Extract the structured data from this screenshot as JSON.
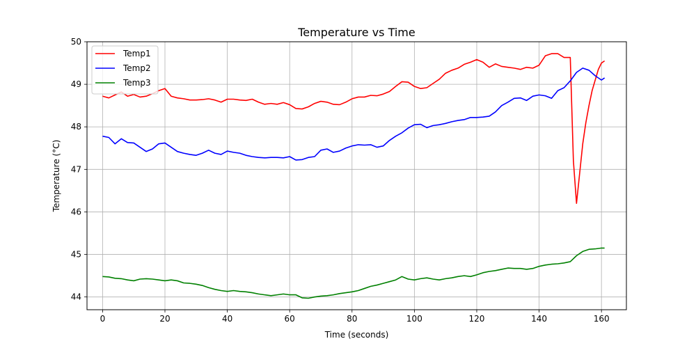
{
  "chart_data": {
    "type": "line",
    "title": "Temperature vs Time",
    "xlabel": "Time (seconds)",
    "ylabel": "Temperature (°C)",
    "xlim": [
      -5,
      168
    ],
    "ylim": [
      43.7,
      50
    ],
    "xticks": [
      0,
      20,
      40,
      60,
      80,
      100,
      120,
      140,
      160
    ],
    "yticks": [
      44,
      45,
      46,
      47,
      48,
      49,
      50
    ],
    "grid": true,
    "legend_position": "top-left",
    "series": [
      {
        "name": "Temp1",
        "color": "#ff0000",
        "points": [
          [
            0,
            48.72
          ],
          [
            2,
            48.68
          ],
          [
            4,
            48.75
          ],
          [
            6,
            48.82
          ],
          [
            8,
            48.72
          ],
          [
            10,
            48.76
          ],
          [
            12,
            48.7
          ],
          [
            14,
            48.72
          ],
          [
            16,
            48.78
          ],
          [
            18,
            48.85
          ],
          [
            20,
            48.9
          ],
          [
            22,
            48.72
          ],
          [
            24,
            48.68
          ],
          [
            26,
            48.66
          ],
          [
            28,
            48.63
          ],
          [
            30,
            48.63
          ],
          [
            32,
            48.64
          ],
          [
            34,
            48.66
          ],
          [
            36,
            48.63
          ],
          [
            38,
            48.58
          ],
          [
            40,
            48.65
          ],
          [
            42,
            48.65
          ],
          [
            44,
            48.63
          ],
          [
            46,
            48.62
          ],
          [
            48,
            48.65
          ],
          [
            50,
            48.58
          ],
          [
            52,
            48.53
          ],
          [
            54,
            48.55
          ],
          [
            56,
            48.53
          ],
          [
            58,
            48.57
          ],
          [
            60,
            48.52
          ],
          [
            62,
            48.43
          ],
          [
            64,
            48.42
          ],
          [
            66,
            48.47
          ],
          [
            68,
            48.55
          ],
          [
            70,
            48.6
          ],
          [
            72,
            48.58
          ],
          [
            74,
            48.53
          ],
          [
            76,
            48.52
          ],
          [
            78,
            48.58
          ],
          [
            80,
            48.66
          ],
          [
            82,
            48.7
          ],
          [
            84,
            48.7
          ],
          [
            86,
            48.74
          ],
          [
            88,
            48.73
          ],
          [
            90,
            48.77
          ],
          [
            92,
            48.83
          ],
          [
            94,
            48.95
          ],
          [
            96,
            49.06
          ],
          [
            98,
            49.05
          ],
          [
            100,
            48.95
          ],
          [
            102,
            48.9
          ],
          [
            104,
            48.92
          ],
          [
            106,
            49.02
          ],
          [
            108,
            49.12
          ],
          [
            110,
            49.26
          ],
          [
            112,
            49.33
          ],
          [
            114,
            49.38
          ],
          [
            116,
            49.47
          ],
          [
            118,
            49.52
          ],
          [
            120,
            49.58
          ],
          [
            122,
            49.52
          ],
          [
            124,
            49.4
          ],
          [
            126,
            49.48
          ],
          [
            128,
            49.42
          ],
          [
            130,
            49.4
          ],
          [
            132,
            49.38
          ],
          [
            134,
            49.35
          ],
          [
            136,
            49.4
          ],
          [
            138,
            49.38
          ],
          [
            140,
            49.45
          ],
          [
            142,
            49.67
          ],
          [
            144,
            49.72
          ],
          [
            146,
            49.72
          ],
          [
            148,
            49.63
          ],
          [
            150,
            49.63
          ],
          [
            151,
            47.2
          ],
          [
            152,
            46.2
          ],
          [
            153,
            46.9
          ],
          [
            154,
            47.6
          ],
          [
            155,
            48.1
          ],
          [
            156,
            48.5
          ],
          [
            157,
            48.85
          ],
          [
            158,
            49.1
          ],
          [
            159,
            49.35
          ],
          [
            160,
            49.5
          ],
          [
            161,
            49.55
          ]
        ]
      },
      {
        "name": "Temp2",
        "color": "#0000ff",
        "points": [
          [
            0,
            47.78
          ],
          [
            2,
            47.75
          ],
          [
            4,
            47.6
          ],
          [
            6,
            47.72
          ],
          [
            8,
            47.63
          ],
          [
            10,
            47.62
          ],
          [
            12,
            47.52
          ],
          [
            14,
            47.42
          ],
          [
            16,
            47.48
          ],
          [
            18,
            47.6
          ],
          [
            20,
            47.62
          ],
          [
            22,
            47.52
          ],
          [
            24,
            47.42
          ],
          [
            26,
            47.38
          ],
          [
            28,
            47.35
          ],
          [
            30,
            47.33
          ],
          [
            32,
            47.38
          ],
          [
            34,
            47.45
          ],
          [
            36,
            47.38
          ],
          [
            38,
            47.35
          ],
          [
            40,
            47.43
          ],
          [
            42,
            47.4
          ],
          [
            44,
            47.38
          ],
          [
            46,
            47.33
          ],
          [
            48,
            47.3
          ],
          [
            50,
            47.28
          ],
          [
            52,
            47.27
          ],
          [
            54,
            47.28
          ],
          [
            56,
            47.28
          ],
          [
            58,
            47.27
          ],
          [
            60,
            47.3
          ],
          [
            62,
            47.22
          ],
          [
            64,
            47.23
          ],
          [
            66,
            47.28
          ],
          [
            68,
            47.3
          ],
          [
            70,
            47.45
          ],
          [
            72,
            47.48
          ],
          [
            74,
            47.4
          ],
          [
            76,
            47.43
          ],
          [
            78,
            47.5
          ],
          [
            80,
            47.55
          ],
          [
            82,
            47.58
          ],
          [
            84,
            47.57
          ],
          [
            86,
            47.58
          ],
          [
            88,
            47.52
          ],
          [
            90,
            47.55
          ],
          [
            92,
            47.68
          ],
          [
            94,
            47.78
          ],
          [
            96,
            47.86
          ],
          [
            98,
            47.97
          ],
          [
            100,
            48.05
          ],
          [
            102,
            48.06
          ],
          [
            104,
            47.98
          ],
          [
            106,
            48.03
          ],
          [
            108,
            48.05
          ],
          [
            110,
            48.08
          ],
          [
            112,
            48.12
          ],
          [
            114,
            48.15
          ],
          [
            116,
            48.17
          ],
          [
            118,
            48.22
          ],
          [
            120,
            48.22
          ],
          [
            122,
            48.23
          ],
          [
            124,
            48.25
          ],
          [
            126,
            48.35
          ],
          [
            128,
            48.5
          ],
          [
            130,
            48.58
          ],
          [
            132,
            48.67
          ],
          [
            134,
            48.68
          ],
          [
            136,
            48.62
          ],
          [
            138,
            48.72
          ],
          [
            140,
            48.75
          ],
          [
            142,
            48.73
          ],
          [
            144,
            48.67
          ],
          [
            146,
            48.85
          ],
          [
            148,
            48.92
          ],
          [
            150,
            49.08
          ],
          [
            152,
            49.28
          ],
          [
            154,
            49.38
          ],
          [
            156,
            49.33
          ],
          [
            158,
            49.2
          ],
          [
            160,
            49.1
          ],
          [
            161,
            49.15
          ]
        ]
      },
      {
        "name": "Temp3",
        "color": "#008000",
        "points": [
          [
            0,
            44.48
          ],
          [
            2,
            44.47
          ],
          [
            4,
            44.44
          ],
          [
            6,
            44.43
          ],
          [
            8,
            44.4
          ],
          [
            10,
            44.38
          ],
          [
            12,
            44.42
          ],
          [
            14,
            44.43
          ],
          [
            16,
            44.42
          ],
          [
            18,
            44.4
          ],
          [
            20,
            44.38
          ],
          [
            22,
            44.4
          ],
          [
            24,
            44.38
          ],
          [
            26,
            44.33
          ],
          [
            28,
            44.32
          ],
          [
            30,
            44.3
          ],
          [
            32,
            44.27
          ],
          [
            34,
            44.22
          ],
          [
            36,
            44.18
          ],
          [
            38,
            44.15
          ],
          [
            40,
            44.13
          ],
          [
            42,
            44.15
          ],
          [
            44,
            44.13
          ],
          [
            46,
            44.12
          ],
          [
            48,
            44.1
          ],
          [
            50,
            44.07
          ],
          [
            52,
            44.05
          ],
          [
            54,
            44.03
          ],
          [
            56,
            44.05
          ],
          [
            58,
            44.07
          ],
          [
            60,
            44.05
          ],
          [
            62,
            44.05
          ],
          [
            64,
            43.98
          ],
          [
            66,
            43.97
          ],
          [
            68,
            44.0
          ],
          [
            70,
            44.02
          ],
          [
            72,
            44.03
          ],
          [
            74,
            44.05
          ],
          [
            76,
            44.08
          ],
          [
            78,
            44.1
          ],
          [
            80,
            44.12
          ],
          [
            82,
            44.15
          ],
          [
            84,
            44.2
          ],
          [
            86,
            44.25
          ],
          [
            88,
            44.28
          ],
          [
            90,
            44.32
          ],
          [
            92,
            44.36
          ],
          [
            94,
            44.4
          ],
          [
            96,
            44.48
          ],
          [
            98,
            44.42
          ],
          [
            100,
            44.4
          ],
          [
            102,
            44.43
          ],
          [
            104,
            44.45
          ],
          [
            106,
            44.42
          ],
          [
            108,
            44.4
          ],
          [
            110,
            44.43
          ],
          [
            112,
            44.45
          ],
          [
            114,
            44.48
          ],
          [
            116,
            44.5
          ],
          [
            118,
            44.48
          ],
          [
            120,
            44.52
          ],
          [
            122,
            44.57
          ],
          [
            124,
            44.6
          ],
          [
            126,
            44.62
          ],
          [
            128,
            44.65
          ],
          [
            130,
            44.68
          ],
          [
            132,
            44.67
          ],
          [
            134,
            44.67
          ],
          [
            136,
            44.65
          ],
          [
            138,
            44.67
          ],
          [
            140,
            44.72
          ],
          [
            142,
            44.75
          ],
          [
            144,
            44.77
          ],
          [
            146,
            44.78
          ],
          [
            148,
            44.8
          ],
          [
            150,
            44.83
          ],
          [
            152,
            44.97
          ],
          [
            154,
            45.07
          ],
          [
            156,
            45.12
          ],
          [
            158,
            45.13
          ],
          [
            160,
            45.15
          ],
          [
            161,
            45.15
          ]
        ]
      }
    ]
  }
}
